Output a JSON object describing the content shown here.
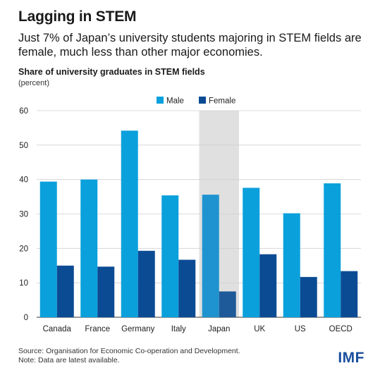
{
  "header": {
    "title": "Lagging in STEM",
    "subtitle": "Just 7% of Japan’s university students majoring in STEM fields are female, much less than other major economies."
  },
  "chart_data": {
    "type": "bar",
    "title": "Share of university graduates in STEM fields",
    "unit": "(percent)",
    "categories": [
      "Canada",
      "France",
      "Germany",
      "Italy",
      "Japan",
      "UK",
      "US",
      "OECD"
    ],
    "series": [
      {
        "name": "Male",
        "values": [
          39.4,
          40.0,
          54.2,
          35.4,
          35.6,
          37.6,
          30.2,
          38.9
        ],
        "color": "#0aa0dc"
      },
      {
        "name": "Female",
        "values": [
          15.0,
          14.7,
          19.3,
          16.7,
          7.5,
          18.3,
          11.7,
          13.4
        ],
        "color": "#0b4b94"
      }
    ],
    "highlight": {
      "category": "Japan",
      "male_color": "#1f93cf",
      "female_color": "#1e5a99",
      "band_color": "#e0e0e0"
    },
    "ylim": [
      0,
      60
    ],
    "yticks": [
      0,
      10,
      20,
      30,
      40,
      50,
      60
    ],
    "grid": true,
    "legend_position": "top-center",
    "xlabel": "",
    "ylabel": ""
  },
  "footer": {
    "source": "Source: Organisation for Economic Co-operation and Development.",
    "note": "Note: Data are latest available.",
    "logo": "IMF"
  }
}
